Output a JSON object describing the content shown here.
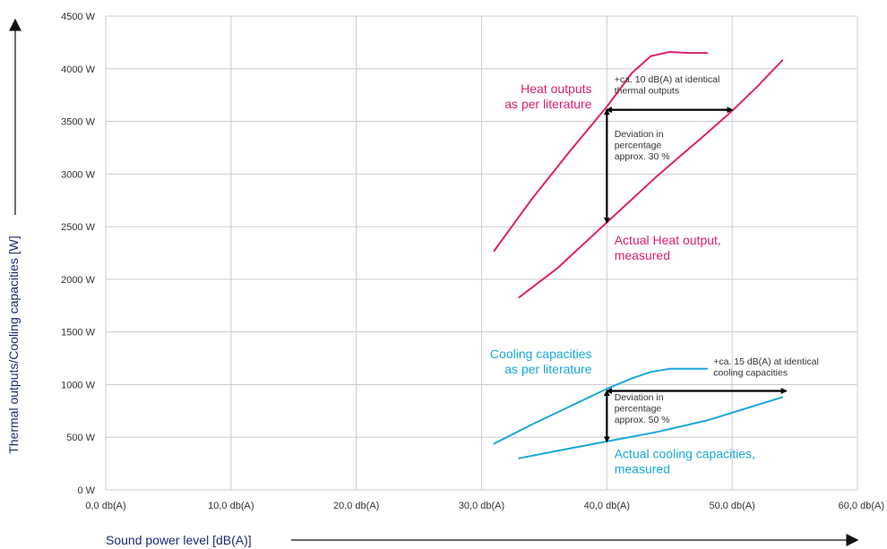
{
  "chart_data": {
    "type": "line",
    "title": "",
    "xlabel": "Sound power level [dB(A)]",
    "ylabel": "Thermal outputs/Cooling capacities [W]",
    "xlim": [
      0,
      60
    ],
    "ylim": [
      0,
      4500
    ],
    "x_ticks": [
      0,
      10,
      20,
      30,
      40,
      50,
      60
    ],
    "x_tick_labels": [
      "0,0 db(A)",
      "10,0 db(A)",
      "20,0 db(A)",
      "30,0 db(A)",
      "40,0 db(A)",
      "50,0 db(A)",
      "60,0 db(A)"
    ],
    "y_ticks": [
      0,
      500,
      1000,
      1500,
      2000,
      2500,
      3000,
      3500,
      4000,
      4500
    ],
    "y_tick_labels": [
      "0 W",
      "500 W",
      "1000 W",
      "1500 W",
      "2000 W",
      "2500 W",
      "3000 W",
      "3500 W",
      "4000 W",
      "4500 W"
    ],
    "grid": true,
    "colors": {
      "heat": "#e0206e",
      "cooling": "#1aa8dc",
      "arrow": "#000000",
      "axis_title": "#1a2a7a",
      "grid": "#cccccc"
    },
    "series": [
      {
        "id": "heat-literature",
        "color": "#e0206e",
        "x": [
          31,
          34,
          37,
          40,
          42,
          43.5,
          45,
          46.5,
          48
        ],
        "y": [
          2270,
          2760,
          3210,
          3640,
          3960,
          4120,
          4160,
          4150,
          4150
        ]
      },
      {
        "id": "heat-measured",
        "color": "#e0206e",
        "x": [
          33,
          36,
          40,
          44,
          48,
          50,
          52,
          54
        ],
        "y": [
          1830,
          2100,
          2540,
          2980,
          3390,
          3600,
          3830,
          4080
        ]
      },
      {
        "id": "cooling-literature",
        "color": "#1aa8dc",
        "x": [
          31,
          34,
          37,
          40,
          42,
          43.5,
          45,
          46.5,
          48
        ],
        "y": [
          440,
          620,
          790,
          960,
          1060,
          1120,
          1150,
          1150,
          1150
        ]
      },
      {
        "id": "cooling-measured",
        "color": "#1aa8dc",
        "x": [
          33,
          36,
          40,
          44,
          48,
          51,
          54
        ],
        "y": [
          300,
          370,
          460,
          550,
          660,
          770,
          880
        ]
      }
    ],
    "arrows": [
      {
        "id": "heat-horizontal-arrow",
        "from": [
          40,
          3610
        ],
        "to": [
          50,
          3610
        ],
        "both_ends": true
      },
      {
        "id": "heat-vertical-arrow",
        "from": [
          40,
          3610
        ],
        "to": [
          40,
          2540
        ],
        "both_ends": true
      },
      {
        "id": "cooling-horizontal-arrow",
        "from": [
          40,
          940
        ],
        "to": [
          54.3,
          940
        ],
        "both_ends": true
      },
      {
        "id": "cooling-vertical-arrow",
        "from": [
          40,
          940
        ],
        "to": [
          40,
          460
        ],
        "both_ends": true
      }
    ],
    "annotations": [
      {
        "id": "heat-literature-label",
        "lines": [
          "Heat outputs",
          "as per literature"
        ],
        "x": 38.8,
        "y": 3770,
        "anchor": "end",
        "color": "#e0206e",
        "size": "large"
      },
      {
        "id": "heat-measured-label",
        "lines": [
          "Actual Heat output,",
          "measured"
        ],
        "x": 40.6,
        "y": 2330,
        "anchor": "start",
        "color": "#e0206e",
        "size": "large"
      },
      {
        "id": "heat-db-label",
        "lines": [
          "+ca. 10 dB(A) at identical",
          "thermal outputs"
        ],
        "x": 40.6,
        "y": 3870,
        "anchor": "start",
        "color": "#333333",
        "size": "small"
      },
      {
        "id": "heat-deviation-label",
        "lines": [
          "Deviation in",
          "percentage",
          "approx. 30 %"
        ],
        "x": 40.6,
        "y": 3350,
        "anchor": "start",
        "color": "#333333",
        "size": "small"
      },
      {
        "id": "cooling-literature-label",
        "lines": [
          "Cooling capacities",
          "as per literature"
        ],
        "x": 38.8,
        "y": 1250,
        "anchor": "end",
        "color": "#1aa8dc",
        "size": "large"
      },
      {
        "id": "cooling-measured-label",
        "lines": [
          "Actual cooling capacities,",
          "measured"
        ],
        "x": 40.6,
        "y": 300,
        "anchor": "start",
        "color": "#1aa8dc",
        "size": "large"
      },
      {
        "id": "cooling-db-label",
        "lines": [
          "+ca. 15 dB(A) at identical",
          "cooling capacities"
        ],
        "x": 48.5,
        "y": 1190,
        "anchor": "start",
        "color": "#333333",
        "size": "small"
      },
      {
        "id": "cooling-deviation-label",
        "lines": [
          "Deviation in",
          "percentage",
          "approx. 50 %"
        ],
        "x": 40.6,
        "y": 850,
        "anchor": "start",
        "color": "#333333",
        "size": "small"
      }
    ]
  }
}
